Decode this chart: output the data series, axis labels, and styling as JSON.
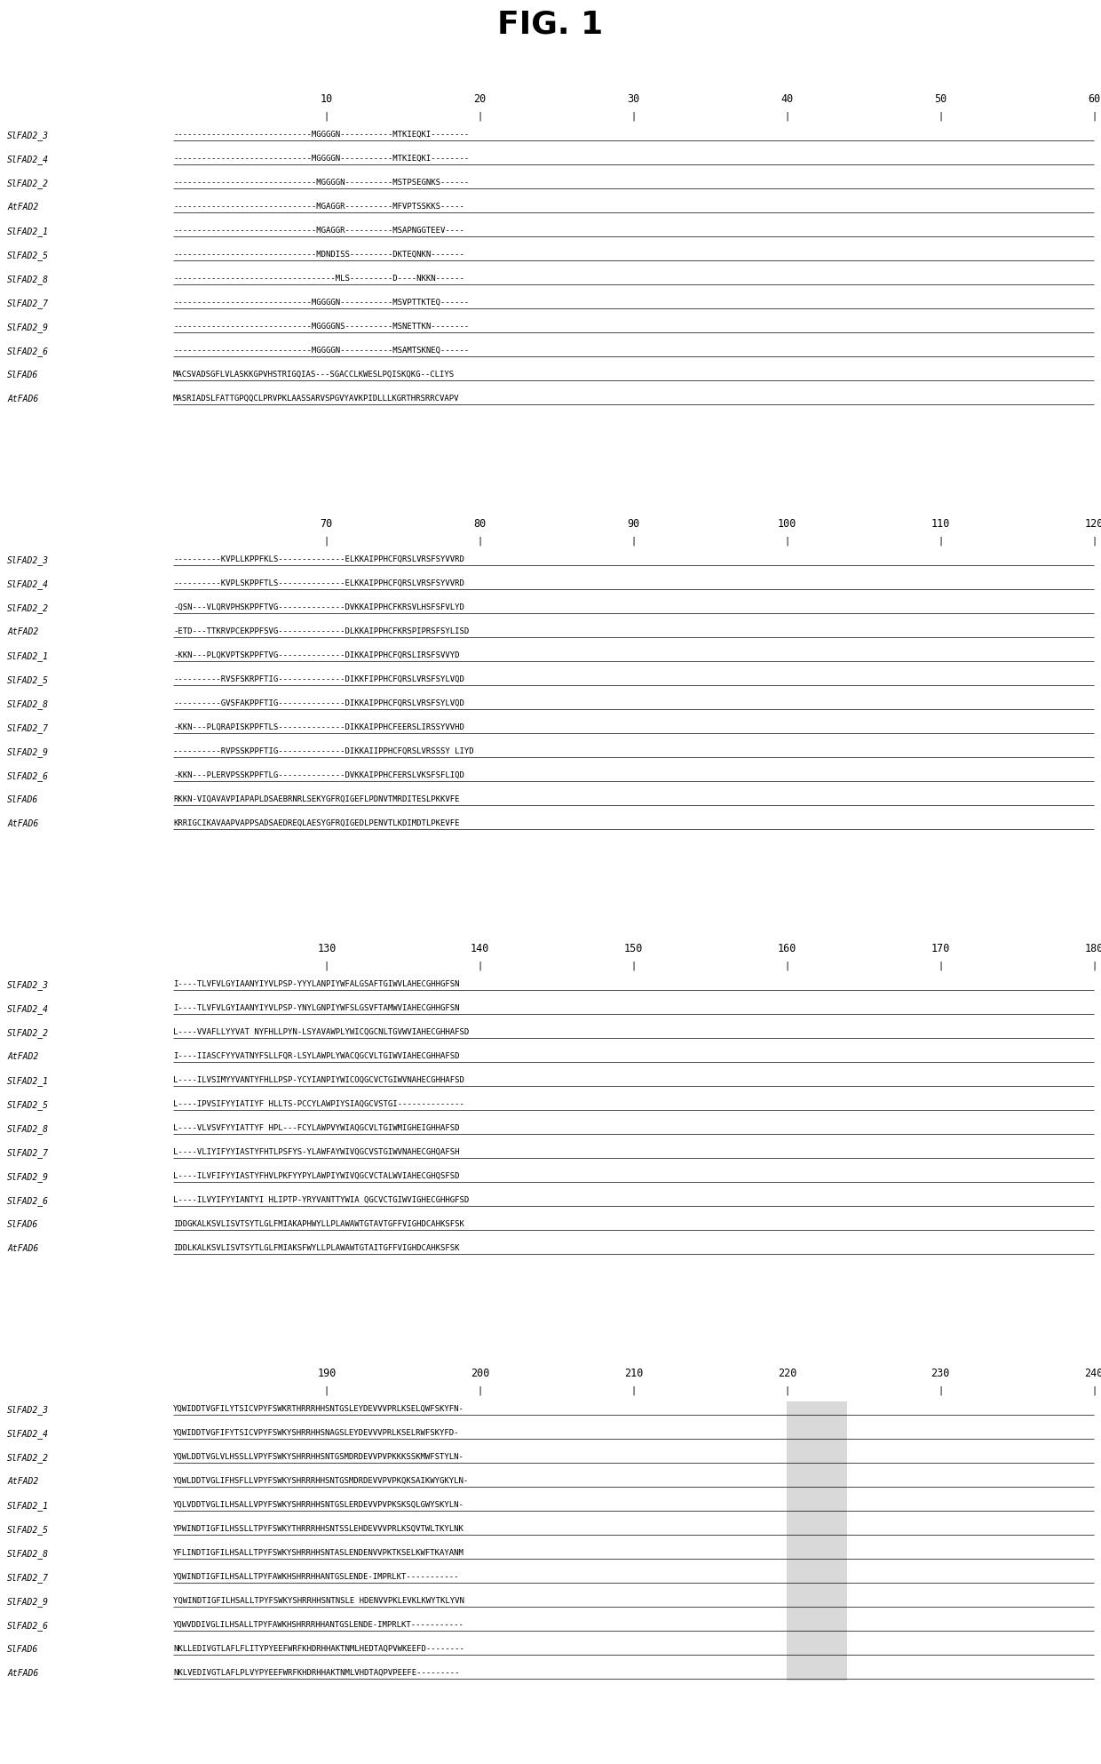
{
  "title": "FIG. 1",
  "title_fontsize": 26,
  "title_fontweight": "bold",
  "seq_fontsize": 6.5,
  "label_fontsize": 7.0,
  "ruler_fontsize": 8.5,
  "background_color": "#ffffff",
  "text_color": "#000000",
  "dash_color": "#aaaaaa",
  "blocks": [
    {
      "ruler_nums": [
        10,
        20,
        30,
        40,
        50,
        60
      ],
      "sequences": [
        {
          "label": "SlFAD2_3",
          "seq": "-----------------------------MGGGGN-----------MTKIEQKI--------"
        },
        {
          "label": "SlFAD2_4",
          "seq": "-----------------------------MGGGGN-----------MTKIEQKI--------"
        },
        {
          "label": "SlFAD2_2",
          "seq": "------------------------------MGGGGN----------MSTPSEGNKS------"
        },
        {
          "label": "AtFAD2",
          "seq": "------------------------------MGAGGR----------MFVPTSSKKS-----"
        },
        {
          "label": "SlFAD2_1",
          "seq": "------------------------------MGAGGR----------MSAPNGGTEEV----"
        },
        {
          "label": "SlFAD2_5",
          "seq": "------------------------------MDNDISS---------DKTEQNKN-------"
        },
        {
          "label": "SlFAD2_8",
          "seq": "----------------------------------MLS---------D----NKKN------"
        },
        {
          "label": "SlFAD2_7",
          "seq": "-----------------------------MGGGGN-----------MSVPTTKTEQ------"
        },
        {
          "label": "SlFAD2_9",
          "seq": "-----------------------------MGGGGNS----------MSNETTKN--------"
        },
        {
          "label": "SlFAD2_6",
          "seq": "-----------------------------MGGGGN-----------MSAMTSKNEQ------"
        },
        {
          "label": "SlFAD6",
          "seq": "MACSVADSGFLVLASKKGPVHSTRIGQIAS---SGACCLKWESLPQISKQKG--CLIYS"
        },
        {
          "label": "AtFAD6",
          "seq": "MASRIADSLFATTGPQQCLPRVPKLAASSARVSPGVYAVKPIDLLLKGRTHRSRRCVAPV"
        }
      ]
    },
    {
      "ruler_nums": [
        70,
        80,
        90,
        100,
        110,
        120
      ],
      "sequences": [
        {
          "label": "SlFAD2_3",
          "seq": "----------KVPLLKPPFKLS--------------ELKKAIPPHCFQRSLVRSFSYVVRD"
        },
        {
          "label": "SlFAD2_4",
          "seq": "----------KVPLSKPPFTLS--------------ELKKAIPPHCFQRSLVRSFSYVVRD"
        },
        {
          "label": "SlFAD2_2",
          "seq": "-QSN---VLQRVPHSKPPFTVG--------------DVKKAIPPHCFKRSVLHSFSFVLYD"
        },
        {
          "label": "AtFAD2",
          "seq": "-ETD---TTKRVPCEKPPFSVG--------------DLKKAIPPHCFKRSPIPRSFSYLISD"
        },
        {
          "label": "SlFAD2_1",
          "seq": "-KKN---PLQKVPTSKPPFTVG--------------DIKKAIPPHCFQRSLIRSFSVVYD"
        },
        {
          "label": "SlFAD2_5",
          "seq": "----------RVSFSKRPFTIG--------------DIKKFIPPHCFQRSLVRSFSYLVQD"
        },
        {
          "label": "SlFAD2_8",
          "seq": "----------GVSFAKPPFTIG--------------DIKKAIPPHCFQRSLVRSFSYLVQD"
        },
        {
          "label": "SlFAD2_7",
          "seq": "-KKN---PLQRAPISKPPFTLS--------------DIKKAIPPHCFEERSLIRSSYVVHD"
        },
        {
          "label": "SlFAD2_9",
          "seq": "----------RVPSSKPPFTIG--------------DIKKAIIPPHCFQRSLVRSSSY LIYD"
        },
        {
          "label": "SlFAD2_6",
          "seq": "-KKN---PLERVPSSKPPFTLG--------------DVKKAIPPHCFERSLVKSFSFLIQD"
        },
        {
          "label": "SlFAD6",
          "seq": "RKKN-VIQAVAVPIAPAPLDSAEBRNRLSEKYGFRQIGEFLPDNVTMRDITESLPKKVFE"
        },
        {
          "label": "AtFAD6",
          "seq": "KRRIGCIKAVAAPVAPPSADSAEDREQLAESYGFRQIGEDLPENVTLKDIMDTLPKEVFE"
        }
      ]
    },
    {
      "ruler_nums": [
        130,
        140,
        150,
        160,
        170,
        180
      ],
      "sequences": [
        {
          "label": "SlFAD2_3",
          "seq": "I----TLVFVLGYIAANYIYVLPSP-YYYLANPIYWFALGSAFTGIWVLAHECGHHGFSN"
        },
        {
          "label": "SlFAD2_4",
          "seq": "I----TLVFVLGYIAANYIYVLPSP-YNYLGNPIYWFSLGSVFTAMWVIAHECGHHGFSN"
        },
        {
          "label": "SlFAD2_2",
          "seq": "L----VVAFLLYYVAT NYFHLLPYN-LSYAVAWPLYWICQGCNLTGVWVIAHECGHHAFSD"
        },
        {
          "label": "AtFAD2",
          "seq": "I----IIASCFYYVATNYFSLLFQR-LSYLAWPLYWACQGCVLTGIWVIAHECGHHAFSD"
        },
        {
          "label": "SlFAD2_1",
          "seq": "L----ILVSIMYYVANTYFHLLPSP-YCYIANPIYWICOQGCVCTGIWVNAHECGHHAFSD"
        },
        {
          "label": "SlFAD2_5",
          "seq": "L----IPVSIFYYIATIYF HLLTS-PCCYLAWPIYSIAQGCVSTGI--------------"
        },
        {
          "label": "SlFAD2_8",
          "seq": "L----VLVSVFYYIATTYF HPL---FCYLAWPVYWIAQGCVLTGIWMIGHEIGHHAFSD"
        },
        {
          "label": "SlFAD2_7",
          "seq": "L----VLIYIFYYIASTYFHTLPSFYS-YLAWFAYWIVQGCVSTGIWVNAHECGHQAFSH"
        },
        {
          "label": "SlFAD2_9",
          "seq": "L----ILVFIFYYIASTYFHVLPKFYYPYLAWPIYWIVQGCVCTALWVIAHECGHQSFSD"
        },
        {
          "label": "SlFAD2_6",
          "seq": "L----ILVYIFYYIANTYI HLIPTP-YRYVANTTYWIA QGCVCTGIWVIGHECGHHGFSD"
        },
        {
          "label": "SlFAD6",
          "seq": "IDDGKALKSVLISVTSYTLGLFMIAKAPHWYLLPLAWAWTGTAVTGFFVIGHDCAHKSFSK"
        },
        {
          "label": "AtFAD6",
          "seq": "IDDLKALKSVLISVTSYTLGLFMIAKSFWYLLPLAWAWTGTAITGFFVIGHDCAHKSFSK"
        }
      ]
    },
    {
      "ruler_nums": [
        190,
        200,
        210,
        220,
        230,
        240
      ],
      "sequences": [
        {
          "label": "SlFAD2_3",
          "seq": "YQWIDDTVGFILYTSICVPYFSWKRTHRRRHHSNTGSLEYDEVVVPRLKSELQWFSKYFN-"
        },
        {
          "label": "SlFAD2_4",
          "seq": "YQWIDDTVGFIFYTSICVPYFSWKYSHRRHHSNAGSLEYDEVVVPRLKSELRWFSKYFD-"
        },
        {
          "label": "SlFAD2_2",
          "seq": "YQWLDDTVGLVLHSSLLVPYFSWKYSHRRHHSNTGSMDRDEVVPVPKKKSSKMWFSTYLN-"
        },
        {
          "label": "AtFAD2",
          "seq": "YQWLDDTVGLIFHSFLLVPYFSWKYSHRRRHHSNTGSMDRDEVVPVPKQKSAIKWYGKYLN-"
        },
        {
          "label": "SlFAD2_1",
          "seq": "YQLVDDTVGLILHSALLVPYFSWKYSHRRHHSNTGSLERDEVVPVPKSKSQLGWYSKYLN-"
        },
        {
          "label": "SlFAD2_5",
          "seq": "YPWINDTIGFILHSSLLTPYFSWKYTHRRRHHSNTSSLEHDEVVVPRLKSQVTWLTKYLNK"
        },
        {
          "label": "SlFAD2_8",
          "seq": "YFLINDTIGFILHSALLTPYFSWKYSHRRHHSNTASLENDENVVPKTKSELKWFTKAYANM"
        },
        {
          "label": "SlFAD2_7",
          "seq": "YQWINDTIGFILHSALLTPYFAWKHSHRRHHANTGSLENDE-IMPRLKT-----------"
        },
        {
          "label": "SlFAD2_9",
          "seq": "YQWINDTIGFILHSALLTPYFSWKYSHRRHHSNTNSLE HDENVVPKLEVKLKWYTKLYVN"
        },
        {
          "label": "SlFAD2_6",
          "seq": "YQWVDDIVGLILHSALLTPYFAWKHSHRRRHHANTGSLENDE-IMPRLKT-----------"
        },
        {
          "label": "SlFAD6",
          "seq": "NKLLEDIVGTLAFLFLITYPYEEFWRFKHDRHHAKTNMLHEDTAQPVWKEEFD--------"
        },
        {
          "label": "AtFAD6",
          "seq": "NKLVEDIVGTLAFLPLVYPYEEFWRFKHDRHHAKTNMLVHDTAQPVPEEFE---------"
        }
      ]
    }
  ]
}
